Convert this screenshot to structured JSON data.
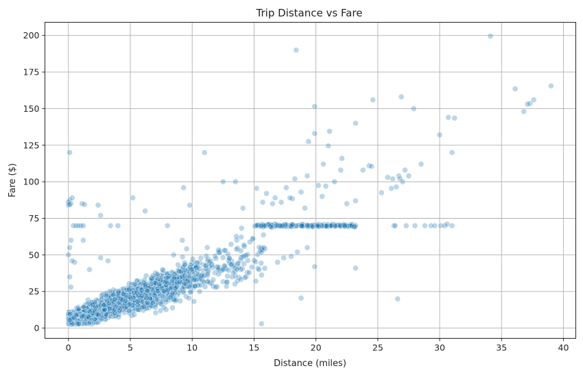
{
  "chart_data": {
    "type": "scatter",
    "title": "Trip Distance vs Fare",
    "xlabel": "Distance (miles)",
    "ylabel": "Fare ($)",
    "xlim": [
      -1.9,
      41
    ],
    "ylim": [
      -7,
      209
    ],
    "xticks": [
      0,
      5,
      10,
      15,
      20,
      25,
      30,
      35,
      40
    ],
    "yticks": [
      0,
      25,
      50,
      75,
      100,
      125,
      150,
      175,
      200
    ],
    "grid": true,
    "legend": "none",
    "point_color": "#1f77b4",
    "point_opacity": 0.3,
    "series": [
      {
        "x": [
          34.1,
          18.4,
          39.0,
          36.1,
          37.6,
          37.3,
          37.1,
          36.8,
          26.9,
          27.9,
          19.9,
          24.6,
          30.7,
          31.2,
          30.0,
          21.1,
          23.2,
          19.9,
          31.0,
          21.0,
          22.1,
          19.4,
          20.6,
          22.0,
          28.5,
          24.3,
          24.5,
          23.8,
          27.2,
          26.7,
          26.2,
          26.5,
          27.0,
          26.8,
          27.5,
          25.8,
          26.1,
          25.3,
          0.1,
          11.0,
          0.1,
          0.2,
          0.3,
          0.0,
          0.0,
          0.1,
          1.1,
          1.3,
          2.4,
          2.6,
          5.2,
          6.2,
          9.3,
          9.8,
          12.5,
          13.5,
          15.2,
          16.0,
          17.6,
          18.3,
          19.3,
          15.7,
          16.7,
          17.2,
          18.1,
          18.8,
          20.2,
          20.8,
          21.5,
          14.1,
          16.5,
          17.9,
          19.1,
          20.5,
          22.5,
          23.2,
          26.3,
          26.4,
          27.3,
          28.0,
          28.8,
          29.3,
          29.6,
          30.1,
          30.4,
          31.0,
          30.6,
          0.4,
          0.6,
          0.8,
          1.0,
          1.2,
          3.4,
          4.0,
          0.2,
          0.1,
          0.5,
          1.2,
          0.0,
          0.3,
          0.1,
          0.2,
          1.7,
          2.6,
          3.2,
          15.6,
          18.8,
          26.6,
          23.2,
          19.9,
          17.4,
          18.5,
          19.3,
          15.4,
          16.9,
          18.0,
          12.1,
          10.6,
          11.4,
          9.2,
          8.0,
          7.6,
          8.5
        ],
        "y": [
          199.5,
          190.0,
          165.5,
          163.5,
          156.0,
          153.5,
          153.0,
          148.0,
          158.0,
          150.0,
          151.5,
          156.0,
          144.0,
          143.5,
          132.0,
          134.5,
          140.0,
          133.0,
          120.0,
          124.5,
          116.0,
          127.5,
          112.0,
          108.0,
          112.0,
          111.0,
          110.5,
          108.0,
          108.0,
          104.0,
          102.0,
          96.5,
          100.0,
          102.0,
          104.0,
          103.0,
          95.5,
          92.5,
          120.0,
          120.0,
          87.5,
          85.0,
          89.0,
          84.0,
          86.0,
          84.5,
          85.0,
          84.5,
          84.0,
          77.0,
          89.0,
          80.0,
          96.0,
          84.0,
          100.0,
          100.0,
          95.5,
          92.0,
          96.0,
          102.0,
          104.0,
          86.0,
          89.0,
          86.0,
          88.5,
          93.0,
          97.5,
          97.0,
          100.0,
          82.0,
          85.0,
          89.0,
          82.0,
          90.0,
          85.0,
          87.0,
          70.0,
          70.0,
          70.0,
          70.0,
          70.0,
          70.0,
          70.0,
          70.0,
          70.0,
          70.0,
          71.0,
          70.0,
          70.0,
          70.0,
          70.0,
          70.0,
          70.0,
          70.0,
          60.0,
          55.0,
          45.0,
          60.0,
          50.0,
          46.0,
          35.0,
          28.0,
          40.0,
          48.0,
          46.0,
          3.0,
          20.5,
          20.0,
          41.0,
          42.0,
          48.0,
          52.0,
          55.0,
          40.0,
          45.0,
          49.0,
          40.0,
          25.0,
          45.0,
          60.0,
          70.0,
          40.0,
          50.0
        ]
      }
    ],
    "dense_band": {
      "description_free_params": true,
      "x_max": 23.2,
      "slope": 3.0,
      "intercept": 5.0,
      "n": 3500
    },
    "flat_band": {
      "y": 70,
      "x_from": 15.0,
      "x_to": 23.2
    }
  }
}
